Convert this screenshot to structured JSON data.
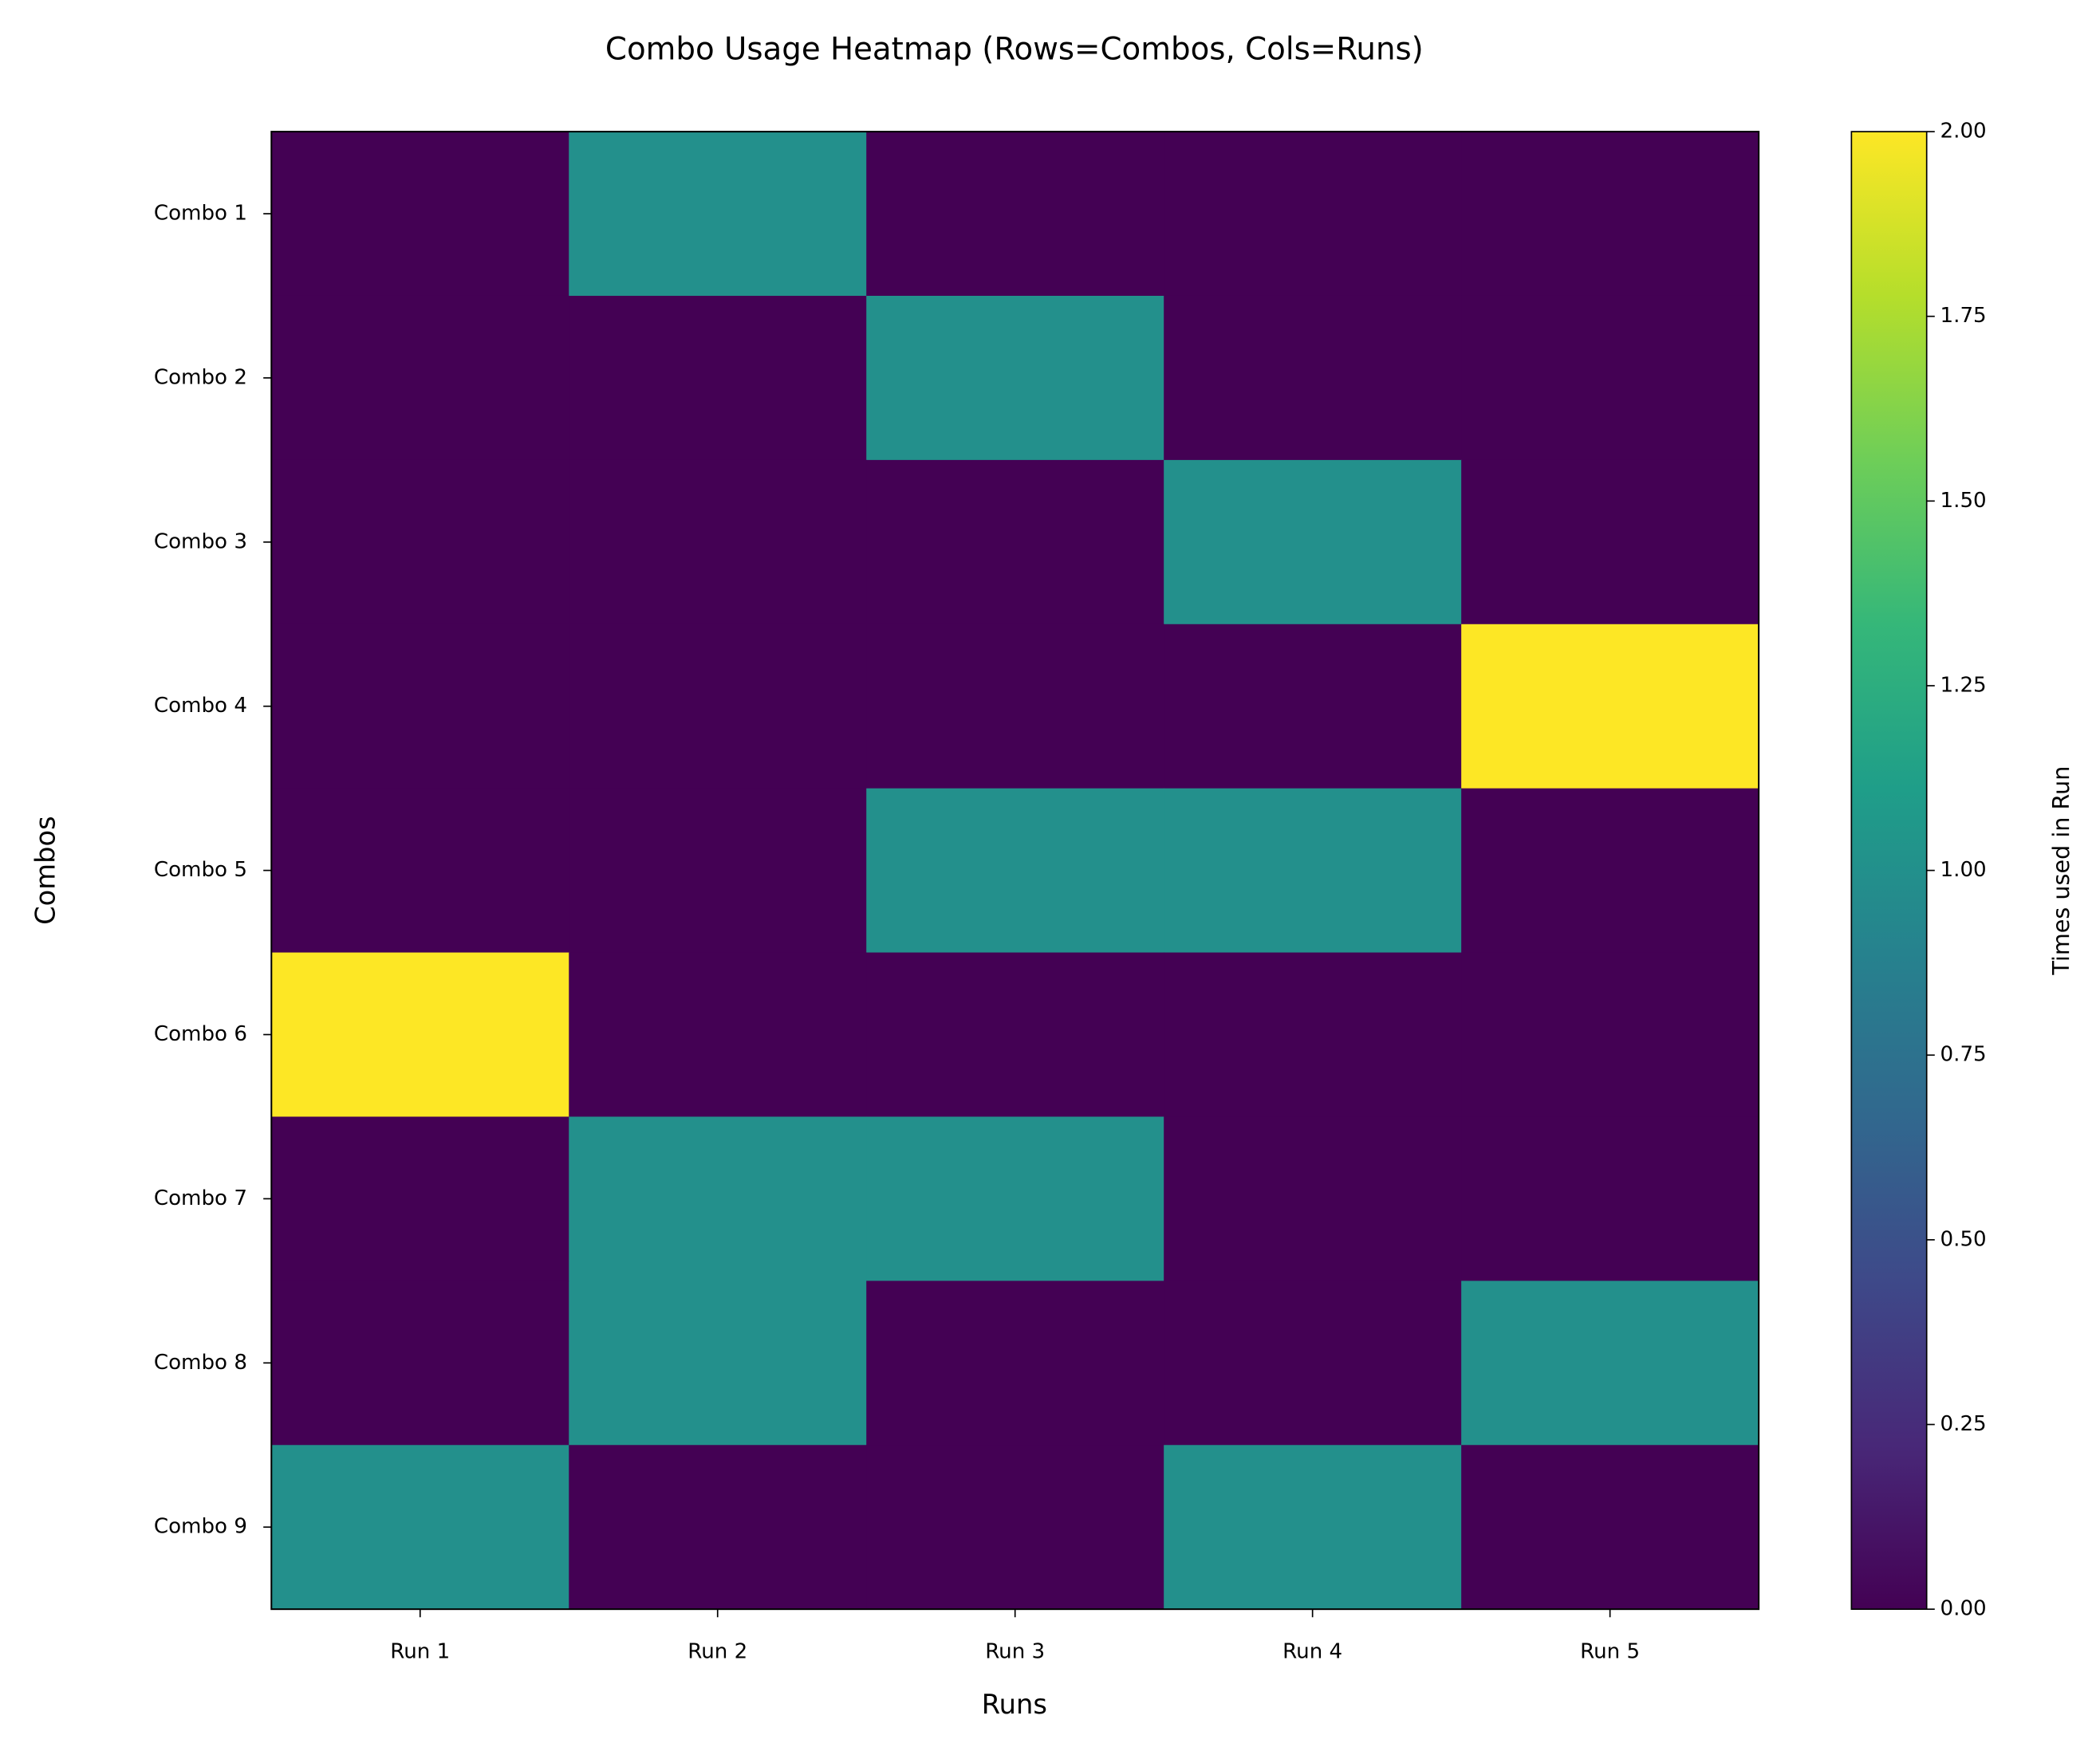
{
  "chart_data": {
    "type": "heatmap",
    "title": "Combo Usage Heatmap (Rows=Combos, Cols=Runs)",
    "x_label": "Runs",
    "y_label": "Combos",
    "columns": [
      "Run 1",
      "Run 2",
      "Run 3",
      "Run 4",
      "Run 5"
    ],
    "rows": [
      "Combo 1",
      "Combo 2",
      "Combo 3",
      "Combo 4",
      "Combo 5",
      "Combo 6",
      "Combo 7",
      "Combo 8",
      "Combo 9"
    ],
    "values": [
      [
        0,
        1,
        0,
        0,
        0
      ],
      [
        0,
        0,
        1,
        0,
        0
      ],
      [
        0,
        0,
        0,
        1,
        0
      ],
      [
        0,
        0,
        0,
        0,
        2
      ],
      [
        0,
        0,
        1,
        1,
        0
      ],
      [
        2,
        0,
        0,
        0,
        0
      ],
      [
        0,
        1,
        1,
        0,
        0
      ],
      [
        0,
        1,
        0,
        0,
        1
      ],
      [
        1,
        0,
        0,
        1,
        0
      ]
    ],
    "colormap": "viridis",
    "colorbar_label": "Times used in Run",
    "zlim": [
      0,
      2
    ],
    "zticks": [
      {
        "value": 0,
        "label": "0.00"
      },
      {
        "value": 0.25,
        "label": "0.25"
      },
      {
        "value": 0.5,
        "label": "0.50"
      },
      {
        "value": 0.75,
        "label": "0.75"
      },
      {
        "value": 1,
        "label": "1.00"
      },
      {
        "value": 1.25,
        "label": "1.25"
      },
      {
        "value": 1.5,
        "label": "1.50"
      },
      {
        "value": 1.75,
        "label": "1.75"
      },
      {
        "value": 2,
        "label": "2.00"
      }
    ]
  }
}
